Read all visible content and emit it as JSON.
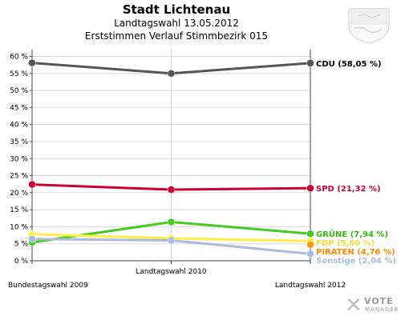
{
  "chart_data": {
    "type": "line",
    "title": "Stadt Lichtenau",
    "subtitle": "Landtagswahl 13.05.2012",
    "subtitle2": "Erststimmen Verlauf Stimmbezirk 015",
    "categories": [
      "Bundestagswahl 2009",
      "Landtagswahl 2010",
      "Landtagswahl 2012"
    ],
    "yticks": [
      "0 %",
      "5 %",
      "10 %",
      "15 %",
      "20 %",
      "25 %",
      "30 %",
      "35 %",
      "40 %",
      "45 %",
      "50 %",
      "55 %",
      "60 %"
    ],
    "ylim": [
      0,
      62
    ],
    "grid": true,
    "series": [
      {
        "name": "CDU",
        "label": "CDU (58,05 %)",
        "color": "#555555",
        "labelColor": "#000000",
        "values": [
          58.1,
          55.0,
          58.05
        ]
      },
      {
        "name": "SPD",
        "label": "SPD (21,32 %)",
        "color": "#cc0033",
        "labelColor": "#cc0033",
        "values": [
          22.4,
          20.9,
          21.32
        ]
      },
      {
        "name": "GRÜNE",
        "label": "GRÜNE (7,94 %)",
        "color": "#44cc22",
        "labelColor": "#33bb11",
        "values": [
          5.4,
          11.4,
          7.94
        ]
      },
      {
        "name": "FDP",
        "label": "FDP (5,80 %)",
        "color": "#ffee44",
        "labelColor": "#eedd33",
        "values": [
          7.8,
          6.6,
          5.8
        ]
      },
      {
        "name": "PIRATEN",
        "label": "PIRATEN (4,76 %)",
        "color": "#ff9900",
        "labelColor": "#ff8800",
        "values": [
          null,
          null,
          4.76
        ]
      },
      {
        "name": "Sonstige",
        "label": "Sonstige (2,04 %)",
        "color": "#aabbdd",
        "labelColor": "#aabbdd",
        "values": [
          6.4,
          6.0,
          2.04
        ]
      }
    ]
  },
  "branding": {
    "crest": "crest-icon",
    "logo_text": "VOTE",
    "logo_sub": "MANAGER"
  }
}
